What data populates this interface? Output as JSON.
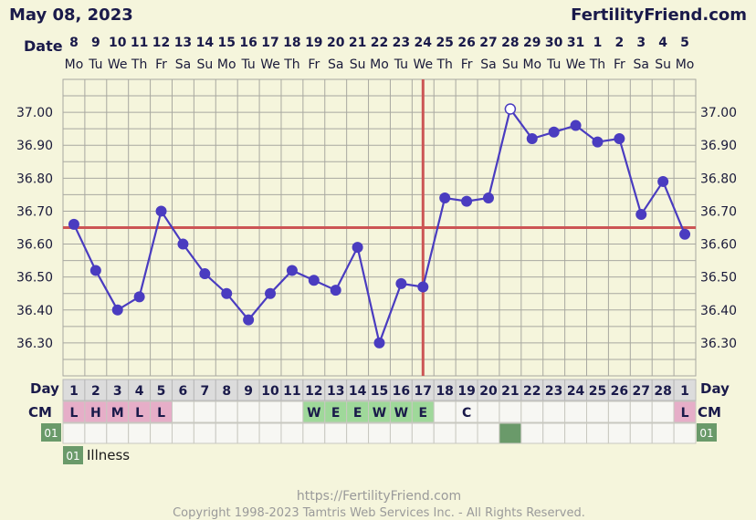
{
  "header": {
    "date_title": "May 08, 2023",
    "brand": "FertilityFriend.com"
  },
  "labels": {
    "date": "Date",
    "day": "Day",
    "cm": "CM",
    "custom_code": "01"
  },
  "legend": {
    "code": "01",
    "label": "Illness"
  },
  "footer": {
    "url": "https://FertilityFriend.com",
    "copyright": "Copyright 1998-2023 Tamtris Web Services Inc. - All Rights Reserved."
  },
  "colors": {
    "background": "#f5f5dc",
    "grid": "#a8a8a0",
    "line": "#4a3cc0",
    "coverline": "#cc5555",
    "cm_pink": "#e6aec8",
    "cm_green": "#9fd89a",
    "marker_green": "#6a9a6a",
    "row_white": "#f7f7f3",
    "day_row": "#dcdcdc"
  },
  "chart_data": {
    "type": "line",
    "ylim": [
      36.2,
      37.1
    ],
    "yticks": [
      "36.30",
      "36.40",
      "36.50",
      "36.60",
      "36.70",
      "36.80",
      "36.90",
      "37.00"
    ],
    "dates": [
      "8",
      "9",
      "10",
      "11",
      "12",
      "13",
      "14",
      "15",
      "16",
      "17",
      "18",
      "19",
      "20",
      "21",
      "22",
      "23",
      "24",
      "25",
      "26",
      "27",
      "28",
      "29",
      "30",
      "31",
      "1",
      "2",
      "3",
      "4",
      "5"
    ],
    "weekdays": [
      "Mo",
      "Tu",
      "We",
      "Th",
      "Fr",
      "Sa",
      "Su",
      "Mo",
      "Tu",
      "We",
      "Th",
      "Fr",
      "Sa",
      "Su",
      "Mo",
      "Tu",
      "We",
      "Th",
      "Fr",
      "Sa",
      "Su",
      "Mo",
      "Tu",
      "We",
      "Th",
      "Fr",
      "Sa",
      "Su",
      "Mo"
    ],
    "cycle_days": [
      "1",
      "2",
      "3",
      "4",
      "5",
      "6",
      "7",
      "8",
      "9",
      "10",
      "11",
      "12",
      "13",
      "14",
      "15",
      "16",
      "17",
      "18",
      "19",
      "20",
      "21",
      "22",
      "23",
      "24",
      "25",
      "26",
      "27",
      "28",
      "1"
    ],
    "temperatures": [
      36.66,
      36.52,
      36.4,
      36.44,
      36.7,
      36.6,
      36.51,
      36.45,
      36.37,
      36.45,
      36.52,
      36.49,
      36.46,
      36.59,
      36.3,
      36.48,
      36.47,
      36.74,
      36.73,
      36.74,
      37.01,
      36.92,
      36.94,
      36.96,
      36.91,
      36.92,
      36.69,
      36.79,
      36.63
    ],
    "open_point_indices": [
      20
    ],
    "coverline": 36.65,
    "ovulation_day_index": 16,
    "cervical_mucus": [
      "L",
      "H",
      "M",
      "L",
      "L",
      "",
      "",
      "",
      "",
      "",
      "",
      "W",
      "E",
      "E",
      "W",
      "W",
      "E",
      "",
      "C",
      "",
      "",
      "",
      "",
      "",
      "",
      "",
      "",
      "",
      "L"
    ],
    "illness_day_indices": [
      20
    ],
    "grid": true
  }
}
